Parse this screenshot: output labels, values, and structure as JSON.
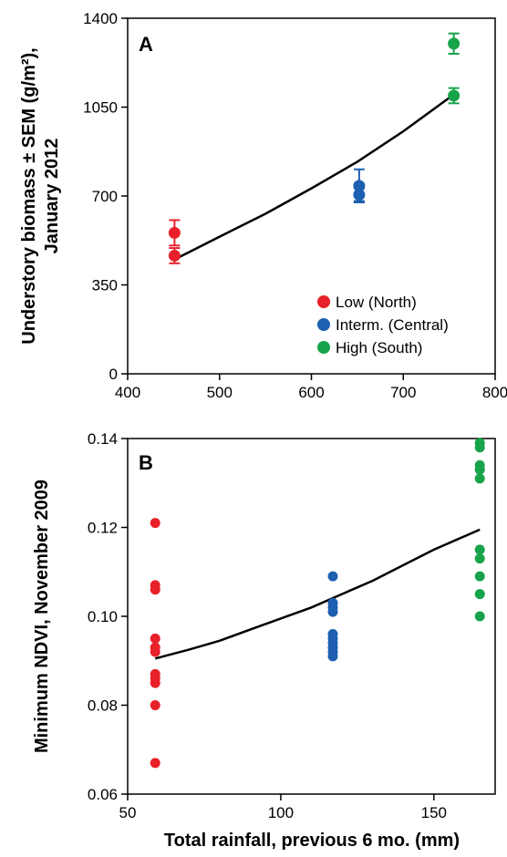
{
  "colors": {
    "low": "#e8202a",
    "intermediate": "#1d5fb0",
    "high": "#16a34a",
    "fit": "#000000"
  },
  "chart_data": [
    {
      "type": "scatter",
      "panel_label": "A",
      "ylabel_line1": "Understory biomass ± SEM (g/m²),",
      "ylabel_line2": "January 2012",
      "xlabel": "",
      "xlim": [
        400,
        800
      ],
      "ylim": [
        0,
        1400
      ],
      "xticks": [
        400,
        500,
        600,
        700,
        800
      ],
      "yticks": [
        0,
        350,
        700,
        1050,
        1400
      ],
      "grid": false,
      "legend_position": "bottom-right",
      "series": [
        {
          "name": "Low (North)",
          "color_key": "low",
          "points": [
            {
              "x": 451,
              "y": 555,
              "err": 50
            },
            {
              "x": 451,
              "y": 465,
              "err": 30
            }
          ]
        },
        {
          "name": "Interm. (Central)",
          "color_key": "intermediate",
          "points": [
            {
              "x": 652,
              "y": 740,
              "err": 65
            },
            {
              "x": 652,
              "y": 705,
              "err": 25
            }
          ]
        },
        {
          "name": "High (South)",
          "color_key": "high",
          "points": [
            {
              "x": 755,
              "y": 1300,
              "err": 40
            },
            {
              "x": 755,
              "y": 1095,
              "err": 30
            }
          ]
        }
      ],
      "fit_line": [
        [
          451,
          450
        ],
        [
          500,
          540
        ],
        [
          550,
          630
        ],
        [
          600,
          730
        ],
        [
          650,
          835
        ],
        [
          700,
          955
        ],
        [
          755,
          1100
        ]
      ]
    },
    {
      "type": "scatter",
      "panel_label": "B",
      "ylabel": "Minimum NDVI, November 2009",
      "xlabel": "Total rainfall, previous 6 mo. (mm)",
      "xlim": [
        50,
        170
      ],
      "ylim": [
        0.06,
        0.14
      ],
      "xticks": [
        50,
        100,
        150
      ],
      "yticks": [
        0.06,
        0.08,
        0.1,
        0.12,
        0.14
      ],
      "ytick_labels": [
        "0.06",
        "0.08",
        "0.10",
        "0.12",
        "0.14"
      ],
      "grid": false,
      "series": [
        {
          "name": "Low (North)",
          "color_key": "low",
          "x": 59,
          "y": [
            0.121,
            0.107,
            0.106,
            0.095,
            0.093,
            0.092,
            0.087,
            0.086,
            0.085,
            0.08,
            0.067
          ]
        },
        {
          "name": "Interm. (Central)",
          "color_key": "intermediate",
          "x": 117,
          "y": [
            0.109,
            0.103,
            0.102,
            0.101,
            0.096,
            0.095,
            0.094,
            0.093,
            0.092,
            0.091
          ]
        },
        {
          "name": "High (South)",
          "color_key": "high",
          "x": 165,
          "y": [
            0.139,
            0.138,
            0.134,
            0.133,
            0.131,
            0.115,
            0.113,
            0.109,
            0.105,
            0.1
          ]
        }
      ],
      "fit_line": [
        [
          59,
          0.0905
        ],
        [
          70,
          0.0925
        ],
        [
          80,
          0.0945
        ],
        [
          90,
          0.097
        ],
        [
          100,
          0.0995
        ],
        [
          110,
          0.102
        ],
        [
          120,
          0.105
        ],
        [
          130,
          0.108
        ],
        [
          140,
          0.1115
        ],
        [
          150,
          0.115
        ],
        [
          165,
          0.1195
        ]
      ]
    }
  ]
}
